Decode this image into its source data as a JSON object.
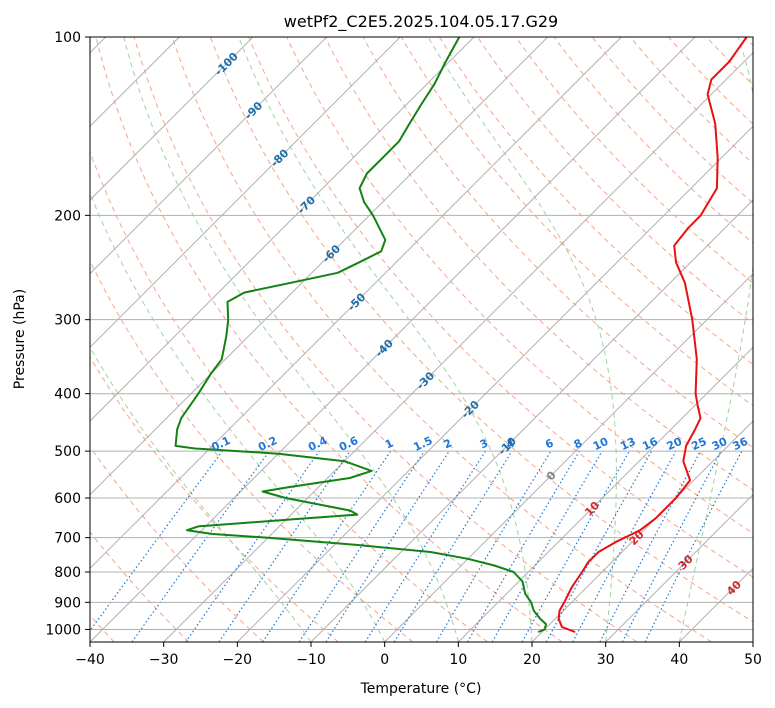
{
  "chart_data": {
    "type": "line",
    "title": "wetPf2_C2E5.2025.104.05.17.G29",
    "xlabel": "Temperature (°C)",
    "ylabel": "Pressure (hPa)",
    "xlim": [
      -40,
      50
    ],
    "ylim": [
      1050,
      100
    ],
    "y_scale": "log",
    "grid": true,
    "x_ticks": [
      -40,
      -30,
      -20,
      -10,
      0,
      10,
      20,
      30,
      40,
      50
    ],
    "y_ticks": [
      1000,
      900,
      800,
      700,
      600,
      500,
      400,
      300,
      200,
      100
    ],
    "series": [
      {
        "role": "temperature",
        "color": "#e81010",
        "points": [
          {
            "p": 1010,
            "t": 24.5
          },
          {
            "p": 990,
            "t": 22.0
          },
          {
            "p": 960,
            "t": 20.5
          },
          {
            "p": 930,
            "t": 19.5
          },
          {
            "p": 900,
            "t": 19.0
          },
          {
            "p": 850,
            "t": 18.0
          },
          {
            "p": 800,
            "t": 17.3
          },
          {
            "p": 770,
            "t": 16.8
          },
          {
            "p": 740,
            "t": 16.8
          },
          {
            "p": 710,
            "t": 17.9
          },
          {
            "p": 680,
            "t": 19.5
          },
          {
            "p": 650,
            "t": 20.0
          },
          {
            "p": 600,
            "t": 20.0
          },
          {
            "p": 560,
            "t": 19.5
          },
          {
            "p": 520,
            "t": 16.0
          },
          {
            "p": 490,
            "t": 14.3
          },
          {
            "p": 460,
            "t": 13.3
          },
          {
            "p": 440,
            "t": 12.5
          },
          {
            "p": 420,
            "t": 10.5
          },
          {
            "p": 400,
            "t": 8.5
          },
          {
            "p": 350,
            "t": 4.0
          },
          {
            "p": 300,
            "t": -2.0
          },
          {
            "p": 260,
            "t": -8.0
          },
          {
            "p": 240,
            "t": -12.0
          },
          {
            "p": 225,
            "t": -14.5
          },
          {
            "p": 210,
            "t": -15.0
          },
          {
            "p": 200,
            "t": -15.0
          },
          {
            "p": 180,
            "t": -16.5
          },
          {
            "p": 160,
            "t": -20.5
          },
          {
            "p": 140,
            "t": -25.5
          },
          {
            "p": 125,
            "t": -30.5
          },
          {
            "p": 118,
            "t": -32.0
          },
          {
            "p": 110,
            "t": -32.0
          },
          {
            "p": 100,
            "t": -33.0
          }
        ]
      },
      {
        "role": "dewpoint",
        "color": "#128212",
        "points": [
          {
            "p": 1010,
            "t": 19.5
          },
          {
            "p": 1000,
            "t": 20.0
          },
          {
            "p": 980,
            "t": 19.5
          },
          {
            "p": 960,
            "t": 18.0
          },
          {
            "p": 930,
            "t": 16.0
          },
          {
            "p": 900,
            "t": 14.5
          },
          {
            "p": 870,
            "t": 12.5
          },
          {
            "p": 850,
            "t": 11.5
          },
          {
            "p": 830,
            "t": 10.5
          },
          {
            "p": 800,
            "t": 8.0
          },
          {
            "p": 780,
            "t": 4.5
          },
          {
            "p": 760,
            "t": 0.0
          },
          {
            "p": 740,
            "t": -6.0
          },
          {
            "p": 720,
            "t": -17.0
          },
          {
            "p": 700,
            "t": -30.0
          },
          {
            "p": 690,
            "t": -38.0
          },
          {
            "p": 680,
            "t": -42.0
          },
          {
            "p": 670,
            "t": -41.0
          },
          {
            "p": 650,
            "t": -28.0
          },
          {
            "p": 640,
            "t": -21.0
          },
          {
            "p": 630,
            "t": -22.5
          },
          {
            "p": 620,
            "t": -26.0
          },
          {
            "p": 600,
            "t": -33.0
          },
          {
            "p": 585,
            "t": -37.0
          },
          {
            "p": 575,
            "t": -34.0
          },
          {
            "p": 555,
            "t": -27.0
          },
          {
            "p": 540,
            "t": -25.0
          },
          {
            "p": 520,
            "t": -30.0
          },
          {
            "p": 505,
            "t": -40.0
          },
          {
            "p": 495,
            "t": -52.0
          },
          {
            "p": 490,
            "t": -55.0
          },
          {
            "p": 460,
            "t": -57.0
          },
          {
            "p": 440,
            "t": -58.0
          },
          {
            "p": 400,
            "t": -59.0
          },
          {
            "p": 370,
            "t": -60.0
          },
          {
            "p": 350,
            "t": -60.5
          },
          {
            "p": 320,
            "t": -63.0
          },
          {
            "p": 300,
            "t": -65.0
          },
          {
            "p": 280,
            "t": -67.5
          },
          {
            "p": 270,
            "t": -66.5
          },
          {
            "p": 260,
            "t": -61.5
          },
          {
            "p": 250,
            "t": -56.5
          },
          {
            "p": 240,
            "t": -55.0
          },
          {
            "p": 230,
            "t": -53.5
          },
          {
            "p": 220,
            "t": -54.5
          },
          {
            "p": 200,
            "t": -59.5
          },
          {
            "p": 190,
            "t": -62.5
          },
          {
            "p": 180,
            "t": -65.0
          },
          {
            "p": 170,
            "t": -66.0
          },
          {
            "p": 160,
            "t": -66.0
          },
          {
            "p": 150,
            "t": -66.0
          },
          {
            "p": 140,
            "t": -67.0
          },
          {
            "p": 130,
            "t": -68.0
          },
          {
            "p": 120,
            "t": -69.0
          },
          {
            "p": 110,
            "t": -70.5
          },
          {
            "p": 100,
            "t": -72.0
          }
        ]
      }
    ],
    "background_lines": {
      "isotherms_c": [
        -140,
        -130,
        -120,
        -110,
        -100,
        -90,
        -80,
        -70,
        -60,
        -50,
        -40,
        -30,
        -20,
        -10,
        0,
        10,
        20,
        30,
        40,
        50
      ],
      "dry_adiabats_c": [
        -50,
        -40,
        -30,
        -20,
        -10,
        0,
        10,
        20,
        30,
        40,
        50,
        60,
        70,
        80,
        90,
        100,
        110,
        120,
        130,
        140,
        150,
        160,
        170,
        180,
        190,
        200
      ],
      "moist_adiabats_c": [
        -10,
        0,
        10,
        20,
        30,
        40
      ],
      "mixing_ratio_gkg": [
        0.1,
        0.2,
        0.4,
        0.6,
        1,
        1.5,
        2,
        3,
        4,
        6,
        8,
        10,
        13,
        16,
        20,
        25,
        30,
        36
      ],
      "mixing_ratio_top_p": 500,
      "isotherm_label_values": [
        "-100",
        "-90",
        "-80",
        "-70",
        "-60",
        "-50",
        "-40",
        "-30",
        "-20",
        "-10",
        "0",
        "10",
        "20",
        "30",
        "40"
      ],
      "mixing_ratio_labels": [
        "0.1",
        "0.2",
        "0.4",
        "0.6",
        "1",
        "1.5",
        "2",
        "3",
        "4",
        "6",
        "8",
        "10",
        "13",
        "16",
        "20",
        "25",
        "30",
        "36"
      ]
    },
    "colors": {
      "isotherm": "#b0b0b0",
      "dry_adiabat": "#f4a58a",
      "moist_adiabat": "#9fd39f",
      "mixing_ratio": "#1f77d4",
      "cold_label": "#1f6fa8",
      "warm_label": "#d62728",
      "zero_label": "#808080"
    }
  }
}
